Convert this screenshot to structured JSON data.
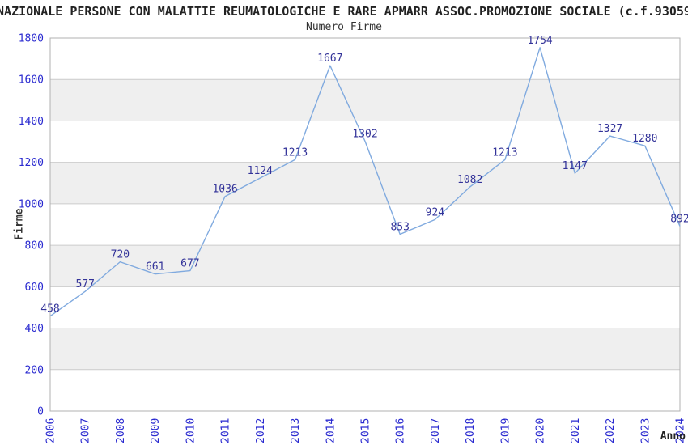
{
  "header": {
    "title": "NAZIONALE PERSONE CON MALATTIE REUMATOLOGICHE E RARE APMARR ASSOC.PROMOZIONE SOCIALE (c.f.93059"
  },
  "colors": {
    "line": "#80aadf",
    "point_label": "#333399",
    "tick_label": "#2a2ad0",
    "band": "#efefef",
    "band_alt": "#ffffff",
    "grid": "#cccccc",
    "outline": "#b0b0b0",
    "text": "#222222"
  },
  "chart_data": {
    "type": "line",
    "title": "Numero Firme",
    "xlabel": "Anno",
    "ylabel": "Firme",
    "x": [
      2006,
      2007,
      2008,
      2009,
      2010,
      2011,
      2012,
      2013,
      2014,
      2015,
      2016,
      2017,
      2018,
      2019,
      2020,
      2021,
      2022,
      2023,
      2024
    ],
    "series": [
      {
        "name": "Numero Firme",
        "values": [
          458,
          577,
          720,
          661,
          677,
          1036,
          1124,
          1213,
          1667,
          1302,
          853,
          924,
          1082,
          1213,
          1754,
          1147,
          1327,
          1280,
          892
        ]
      }
    ],
    "ylim": [
      0,
      1800
    ],
    "ytick_step": 200,
    "grid": "horizontal-bands-alternating",
    "legend": "none",
    "point_labels": true
  }
}
